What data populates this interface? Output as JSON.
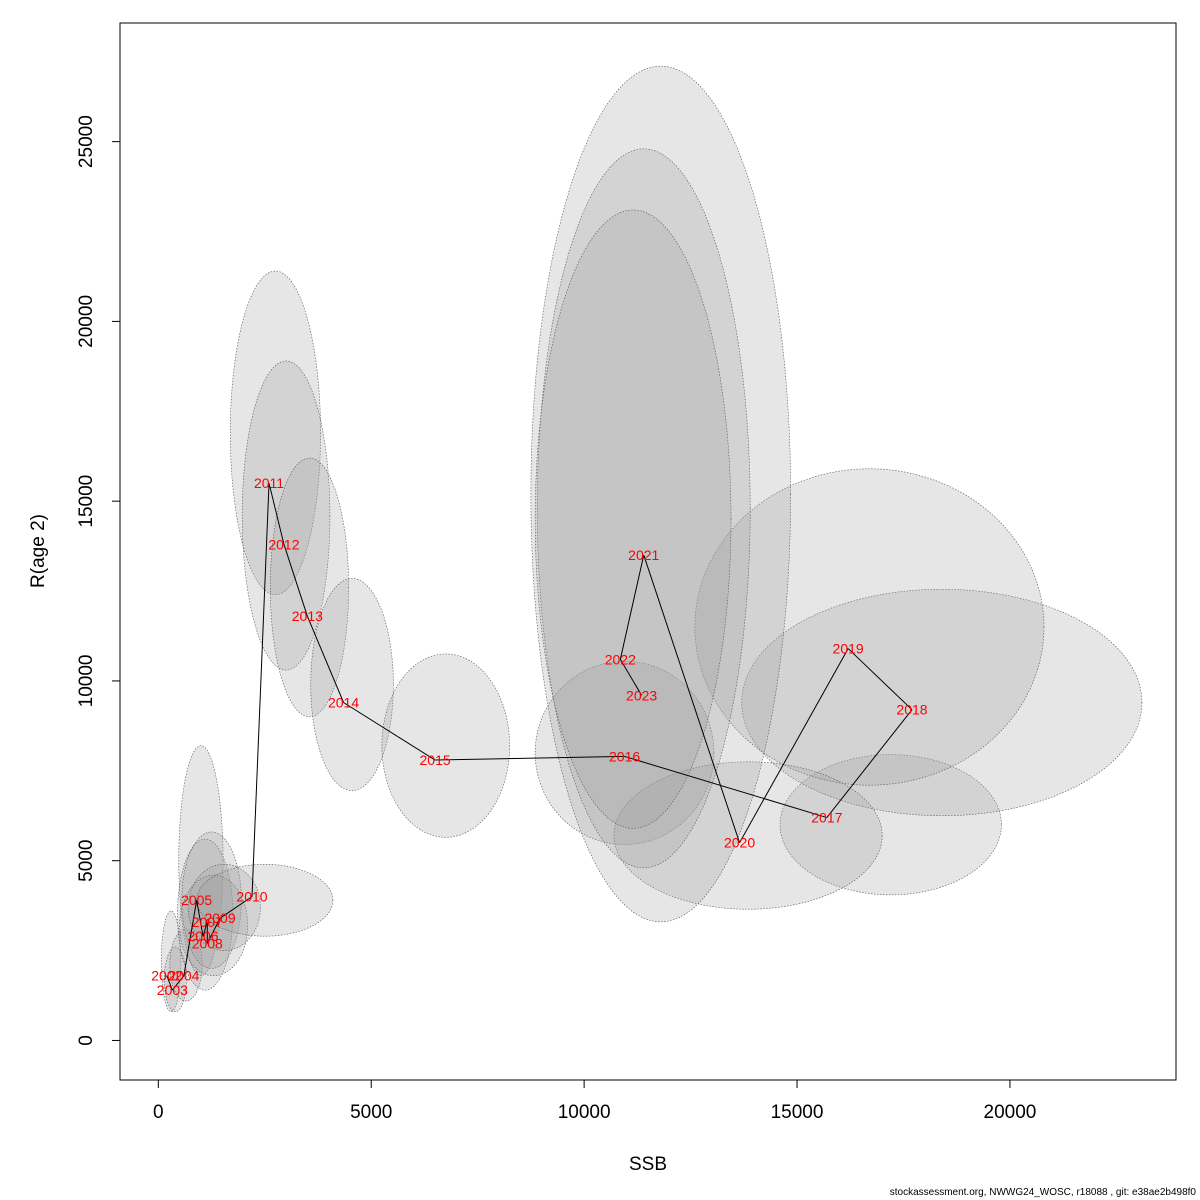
{
  "footer": "stockassessment.org, NWWG24_WOSC, r18088 , git: e38ae2b498f0",
  "colors": {
    "ellipse_fill": "#9a9a9a",
    "ellipse_stroke": "#555555",
    "line": "#000000",
    "label": "#ff0000"
  },
  "chart_data": {
    "type": "scatter",
    "xlabel": "SSB",
    "ylabel": "R(age 2)",
    "xlim": [
      -900,
      23900
    ],
    "ylim": [
      -1100,
      28300
    ],
    "x_ticks": [
      0,
      5000,
      10000,
      15000,
      20000
    ],
    "y_ticks": [
      0,
      5000,
      10000,
      15000,
      20000,
      25000
    ],
    "grid": false,
    "connected": true,
    "points": [
      {
        "year": "2002",
        "ssb": 200,
        "r": 1800,
        "ell": {
          "cx": 300,
          "cy": 2200,
          "rx": 230,
          "ry": 1400
        }
      },
      {
        "year": "2003",
        "ssb": 330,
        "r": 1400,
        "ell": {
          "cx": 400,
          "cy": 1700,
          "rx": 260,
          "ry": 900
        }
      },
      {
        "year": "2004",
        "ssb": 600,
        "r": 1800,
        "ell": {
          "cx": 650,
          "cy": 2100,
          "rx": 380,
          "ry": 1000
        }
      },
      {
        "year": "2005",
        "ssb": 900,
        "r": 3900,
        "ell": {
          "cx": 1000,
          "cy": 5000,
          "rx": 520,
          "ry": 3200
        }
      },
      {
        "year": "2006",
        "ssb": 1050,
        "r": 2900,
        "ell": {
          "cx": 1100,
          "cy": 3500,
          "rx": 650,
          "ry": 2100
        }
      },
      {
        "year": "2007",
        "ssb": 1150,
        "r": 3300,
        "ell": {
          "cx": 1250,
          "cy": 3900,
          "rx": 700,
          "ry": 1900
        }
      },
      {
        "year": "2008",
        "ssb": 1150,
        "r": 2700,
        "ell": {
          "cx": 1300,
          "cy": 3200,
          "rx": 800,
          "ry": 1400
        }
      },
      {
        "year": "2009",
        "ssb": 1450,
        "r": 3400,
        "ell": {
          "cx": 1550,
          "cy": 3700,
          "rx": 850,
          "ry": 1200
        }
      },
      {
        "year": "2010",
        "ssb": 2200,
        "r": 4000,
        "ell": {
          "cx": 2500,
          "cy": 3900,
          "rx": 1600,
          "ry": 1000
        }
      },
      {
        "year": "2011",
        "ssb": 2600,
        "r": 15500,
        "ell": {
          "cx": 2750,
          "cy": 16900,
          "rx": 1060,
          "ry": 4500
        }
      },
      {
        "year": "2012",
        "ssb": 2950,
        "r": 13800,
        "ell": {
          "cx": 3000,
          "cy": 14600,
          "rx": 1030,
          "ry": 4300
        }
      },
      {
        "year": "2013",
        "ssb": 3500,
        "r": 11800,
        "ell": {
          "cx": 3550,
          "cy": 12600,
          "rx": 920,
          "ry": 3600
        }
      },
      {
        "year": "2014",
        "ssb": 4350,
        "r": 9400,
        "ell": {
          "cx": 4550,
          "cy": 9900,
          "rx": 970,
          "ry": 2950
        }
      },
      {
        "year": "2015",
        "ssb": 6500,
        "r": 7800,
        "ell": {
          "cx": 6750,
          "cy": 8200,
          "rx": 1500,
          "ry": 2550
        }
      },
      {
        "year": "2016",
        "ssb": 10950,
        "r": 7900,
        "ell": {
          "cx": 10950,
          "cy": 8000,
          "rx": 2100,
          "ry": 2550
        }
      },
      {
        "year": "2017",
        "ssb": 15700,
        "r": 6200,
        "ell": {
          "cx": 17200,
          "cy": 6000,
          "rx": 2600,
          "ry": 1950
        }
      },
      {
        "year": "2018",
        "ssb": 17700,
        "r": 9200,
        "ell": {
          "cx": 18400,
          "cy": 9400,
          "rx": 4700,
          "ry": 3150
        }
      },
      {
        "year": "2019",
        "ssb": 16200,
        "r": 10900,
        "ell": {
          "cx": 16700,
          "cy": 11500,
          "rx": 4100,
          "ry": 4400
        }
      },
      {
        "year": "2020",
        "ssb": 13650,
        "r": 5500,
        "ell": {
          "cx": 13850,
          "cy": 5700,
          "rx": 3150,
          "ry": 2050
        }
      },
      {
        "year": "2021",
        "ssb": 11400,
        "r": 13500,
        "ell": {
          "cx": 11800,
          "cy": 15200,
          "rx": 3050,
          "ry": 11900
        }
      },
      {
        "year": "2022",
        "ssb": 10850,
        "r": 10600,
        "ell": {
          "cx": 11400,
          "cy": 14800,
          "rx": 2500,
          "ry": 10000
        }
      },
      {
        "year": "2023",
        "ssb": 11350,
        "r": 9600,
        "ell": {
          "cx": 11150,
          "cy": 14500,
          "rx": 2300,
          "ry": 8600
        }
      }
    ]
  }
}
